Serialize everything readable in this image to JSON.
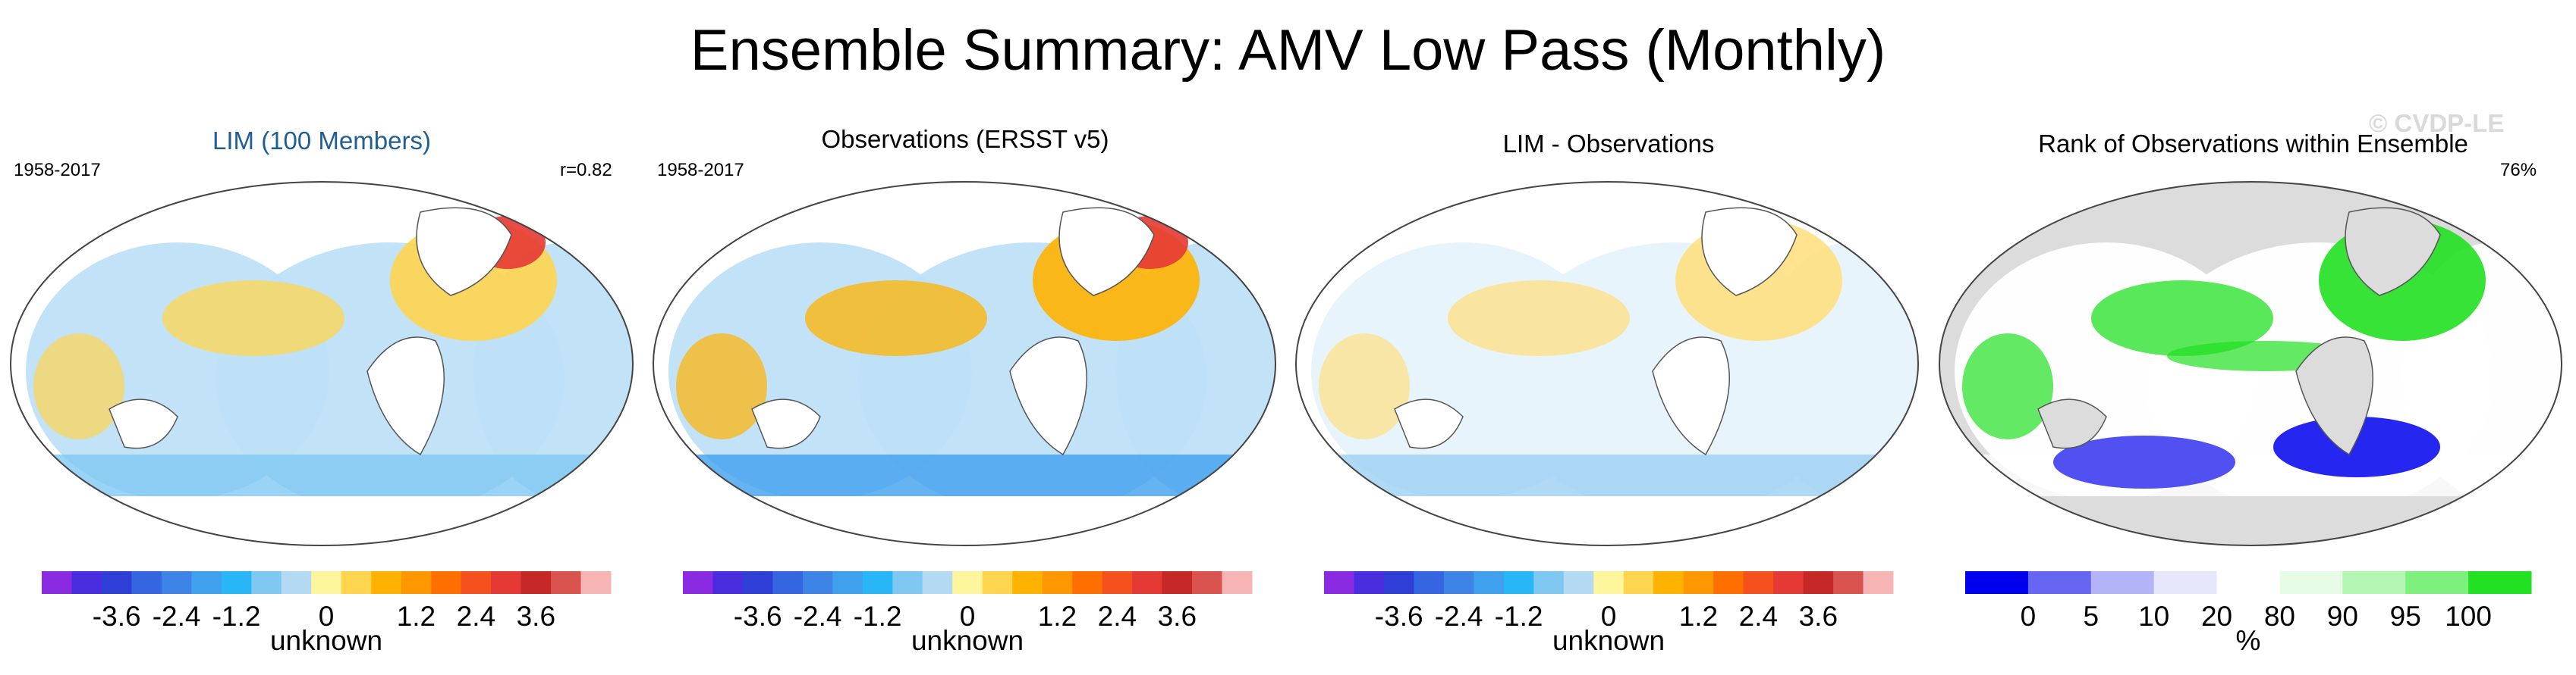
{
  "title": "Ensemble Summary: AMV Low Pass (Monthly)",
  "watermark": "© CVDP-LE",
  "panels": [
    {
      "title": "LIM (100 Members)",
      "title_color": "#1f5f94",
      "left_label": "1958-2017",
      "right_label": "r=0.82"
    },
    {
      "title": "Observations (ERSST v5)",
      "title_color": "#000000",
      "left_label": "1958-2017",
      "right_label": ""
    },
    {
      "title": "LIM - Observations",
      "title_color": "#000000",
      "left_label": "",
      "right_label": ""
    },
    {
      "title": "Rank of Observations within Ensemble",
      "title_color": "#000000",
      "left_label": "",
      "right_label": "76%"
    }
  ],
  "colorbars": [
    {
      "label": "unknown",
      "colors": [
        "#8a2be2",
        "#4b2de0",
        "#2f3fd6",
        "#3366e0",
        "#3d84e6",
        "#3fa0ee",
        "#29b6f6",
        "#7fc8f2",
        "#b3daf2",
        "#fff59d",
        "#ffd54f",
        "#ffb300",
        "#ff9800",
        "#ff6f00",
        "#f4511e",
        "#e53935",
        "#c62828",
        "#d9534f",
        "#f7b4b4"
      ],
      "ticks": [
        "-3.6",
        "-2.4",
        "-1.2",
        "0",
        "1.2",
        "2.4",
        "3.6"
      ]
    },
    {
      "label": "unknown",
      "colors": [
        "#8a2be2",
        "#4b2de0",
        "#2f3fd6",
        "#3366e0",
        "#3d84e6",
        "#3fa0ee",
        "#29b6f6",
        "#7fc8f2",
        "#b3daf2",
        "#fff59d",
        "#ffd54f",
        "#ffb300",
        "#ff9800",
        "#ff6f00",
        "#f4511e",
        "#e53935",
        "#c62828",
        "#d9534f",
        "#f7b4b4"
      ],
      "ticks": [
        "-3.6",
        "-2.4",
        "-1.2",
        "0",
        "1.2",
        "2.4",
        "3.6"
      ]
    },
    {
      "label": "unknown",
      "colors": [
        "#8a2be2",
        "#4b2de0",
        "#2f3fd6",
        "#3366e0",
        "#3d84e6",
        "#3fa0ee",
        "#29b6f6",
        "#7fc8f2",
        "#b3daf2",
        "#fff59d",
        "#ffd54f",
        "#ffb300",
        "#ff9800",
        "#ff6f00",
        "#f4511e",
        "#e53935",
        "#c62828",
        "#d9534f",
        "#f7b4b4"
      ],
      "ticks": [
        "-3.6",
        "-2.4",
        "-1.2",
        "0",
        "1.2",
        "2.4",
        "3.6"
      ]
    },
    {
      "label": "%",
      "colors": [
        "#0000ee",
        "#6666f2",
        "#b3b3f7",
        "#e6e6fc",
        "#ffffff",
        "#e6fce6",
        "#b3f7b3",
        "#7ef07e",
        "#22e022"
      ],
      "ticks": [
        "0",
        "5",
        "10",
        "20",
        "80",
        "90",
        "95",
        "100"
      ]
    }
  ],
  "chart_data": {
    "type": "heatmap",
    "title": "Ensemble Summary: AMV Low Pass (Monthly)",
    "period": "1958-2017",
    "pattern_correlation": 0.82,
    "rank_percent": 76,
    "maps": [
      "LIM (100 Members)",
      "Observations (ERSST v5)",
      "LIM - Observations",
      "Rank of Observations within Ensemble"
    ],
    "anomaly_scale": {
      "label": "unknown",
      "ticks": [
        -3.6,
        -2.4,
        -1.2,
        0,
        1.2,
        2.4,
        3.6
      ]
    },
    "rank_scale": {
      "label": "%",
      "ticks": [
        0,
        5,
        10,
        20,
        80,
        90,
        95,
        100
      ]
    }
  }
}
